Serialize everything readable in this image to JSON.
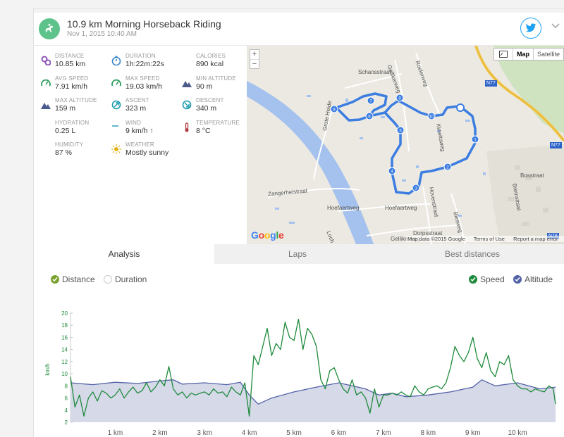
{
  "activity": {
    "title": "10.9 km Morning Horseback Riding",
    "date": "Nov 1, 2015 10:40 AM"
  },
  "stats": [
    {
      "label": "DISTANCE",
      "value": "10.85 km",
      "icon": "distance-pin-icon",
      "color": "#8e55b5"
    },
    {
      "label": "DURATION",
      "value": "1h:22m:22s",
      "icon": "stopwatch-icon",
      "color": "#3b86c9"
    },
    {
      "label": "CALORIES",
      "value": "890 kcal",
      "icon": "flame-icon",
      "color": "#e8612c"
    },
    {
      "label": "AVG SPEED",
      "value": "7.91 km/h",
      "icon": "speedometer-icon",
      "color": "#2a9a5c"
    },
    {
      "label": "MAX SPEED",
      "value": "19.03 km/h",
      "icon": "speedometer-icon",
      "color": "#2a9a5c"
    },
    {
      "label": "MIN ALTITUDE",
      "value": "90 m",
      "icon": "mountain-icon",
      "color": "#4a5a8c"
    },
    {
      "label": "MAX ALTITUDE",
      "value": "159 m",
      "icon": "mountain-icon",
      "color": "#4a5a8c"
    },
    {
      "label": "ASCENT",
      "value": "323 m",
      "icon": "ascent-icon",
      "color": "#1c9bb0"
    },
    {
      "label": "DESCENT",
      "value": "340 m",
      "icon": "descent-icon",
      "color": "#1c9bb0"
    },
    {
      "label": "HYDRATION",
      "value": "0.25 L",
      "icon": "water-drops-icon",
      "color": "#5b9bd5"
    },
    {
      "label": "WIND",
      "value": "9 km/h ↑",
      "icon": "wind-icon",
      "color": "#2aa0b8"
    },
    {
      "label": "TEMPERATURE",
      "value": "8 °C",
      "icon": "thermometer-icon",
      "color": "#b0393f"
    },
    {
      "label": "HUMIDITY",
      "value": "87 %",
      "icon": "humidity-drops-icon",
      "color": "#5b9bd5"
    },
    {
      "label": "WEATHER",
      "value": "Mostly sunny",
      "icon": "sun-icon",
      "color": "#e0b21a"
    }
  ],
  "map": {
    "zoom_in": "+",
    "zoom_out": "−",
    "type_map": "Map",
    "type_satellite": "Satellite",
    "google_logo": "Google",
    "attribution": [
      "Map data ©2015 Google",
      "Terms of Use",
      "Report a map error"
    ],
    "labels": [
      {
        "text": "Schansstraat"
      },
      {
        "text": "Gellikerweg"
      },
      {
        "text": "Roelerweg"
      },
      {
        "text": "Grote Heide"
      },
      {
        "text": "Kiewitsweg"
      },
      {
        "text": "Bosstraat"
      },
      {
        "text": "Bremstraat"
      },
      {
        "text": "Zangerheistraat"
      },
      {
        "text": "Hoefaertweg"
      },
      {
        "text": "Hoefaertweg"
      },
      {
        "text": "Hovenstraat"
      },
      {
        "text": "Biesweg"
      },
      {
        "text": "Dorpsstraat"
      },
      {
        "text": "Gellikerweg"
      },
      {
        "text": "Loch"
      }
    ],
    "roads": [
      "N77",
      "N77",
      "N78"
    ],
    "km_markers": [
      "1",
      "2",
      "3",
      "4",
      "5",
      "6",
      "7",
      "8",
      "9",
      "10"
    ]
  },
  "tabs": [
    {
      "label": "Analysis"
    },
    {
      "label": "Laps"
    },
    {
      "label": "Best distances"
    }
  ],
  "legend": {
    "distance": "Distance",
    "duration": "Duration",
    "speed": "Speed",
    "altitude": "Altitude"
  },
  "colors": {
    "speed": "#1e8a3b",
    "altitude_line": "#5463a8",
    "altitude_fill": "#d5d9e8",
    "route": "#3b7de0",
    "accent_green": "#7aa22f"
  },
  "chart_data": {
    "type": "line",
    "xlabel": "",
    "ylabel": "km/h",
    "xlim": [
      0,
      10.85
    ],
    "ylim": [
      2,
      20
    ],
    "x_ticks": [
      "1 km",
      "2 km",
      "3 km",
      "4 km",
      "5 km",
      "6 km",
      "7 km",
      "8 km",
      "9 km",
      "10 km"
    ],
    "y_ticks": [
      "2",
      "4",
      "6",
      "8",
      "10",
      "12",
      "14",
      "16",
      "18",
      "20"
    ],
    "series": [
      {
        "name": "Speed",
        "x": [
          0.0,
          0.1,
          0.2,
          0.3,
          0.4,
          0.5,
          0.6,
          0.7,
          0.8,
          0.9,
          1.0,
          1.1,
          1.2,
          1.3,
          1.4,
          1.5,
          1.6,
          1.7,
          1.8,
          1.9,
          2.0,
          2.1,
          2.2,
          2.3,
          2.4,
          2.5,
          2.6,
          2.7,
          2.8,
          2.9,
          3.0,
          3.1,
          3.2,
          3.3,
          3.4,
          3.5,
          3.6,
          3.7,
          3.8,
          3.9,
          4.0,
          4.1,
          4.2,
          4.3,
          4.4,
          4.5,
          4.6,
          4.7,
          4.8,
          4.9,
          5.0,
          5.1,
          5.2,
          5.3,
          5.4,
          5.5,
          5.6,
          5.7,
          5.8,
          5.9,
          6.0,
          6.1,
          6.2,
          6.3,
          6.4,
          6.5,
          6.6,
          6.7,
          6.8,
          6.9,
          7.0,
          7.1,
          7.2,
          7.3,
          7.4,
          7.5,
          7.6,
          7.7,
          7.8,
          7.9,
          8.0,
          8.1,
          8.2,
          8.3,
          8.4,
          8.5,
          8.6,
          8.7,
          8.8,
          8.9,
          9.0,
          9.1,
          9.2,
          9.3,
          9.4,
          9.5,
          9.6,
          9.7,
          9.8,
          9.9,
          10.0,
          10.1,
          10.2,
          10.3,
          10.4,
          10.5,
          10.6,
          10.7,
          10.8,
          10.85
        ],
        "values": [
          9.5,
          4.5,
          6.5,
          3.0,
          6.0,
          7.0,
          5.5,
          7.2,
          6.8,
          6.0,
          6.5,
          7.5,
          6.0,
          7.0,
          7.8,
          6.8,
          7.2,
          8.5,
          7.0,
          7.8,
          9.0,
          8.0,
          11.2,
          7.5,
          6.5,
          7.0,
          6.0,
          6.8,
          6.5,
          6.8,
          7.0,
          6.5,
          7.5,
          6.8,
          7.0,
          6.2,
          7.8,
          7.0,
          6.5,
          8.5,
          3.0,
          13.0,
          11.5,
          14.5,
          17.5,
          13.0,
          15.0,
          14.0,
          18.5,
          16.0,
          15.5,
          19.0,
          14.0,
          17.5,
          16.5,
          14.5,
          9.0,
          7.5,
          10.5,
          11.0,
          9.0,
          7.5,
          6.8,
          9.0,
          6.5,
          7.0,
          6.0,
          3.5,
          7.5,
          4.5,
          6.5,
          6.5,
          6.8,
          6.5,
          7.0,
          6.5,
          6.2,
          8.0,
          7.0,
          6.5,
          7.5,
          7.8,
          8.0,
          7.5,
          8.5,
          11.0,
          14.5,
          13.0,
          12.0,
          13.5,
          16.0,
          12.5,
          11.0,
          13.5,
          10.5,
          9.5,
          12.0,
          11.5,
          13.0,
          9.0,
          8.0,
          7.5,
          7.5,
          7.0,
          7.5,
          7.2,
          7.0,
          8.0,
          7.5,
          5.0
        ],
        "color": "#1e8a3b"
      },
      {
        "name": "Altitude",
        "x": [
          0.0,
          0.5,
          1.0,
          1.5,
          2.0,
          2.3,
          2.5,
          3.0,
          3.5,
          3.8,
          4.0,
          4.2,
          4.5,
          5.0,
          5.5,
          6.0,
          6.3,
          6.6,
          6.9,
          7.2,
          7.5,
          8.0,
          8.5,
          9.0,
          9.2,
          9.5,
          10.0,
          10.5,
          10.85
        ],
        "values": [
          8.5,
          8.2,
          8.6,
          8.4,
          8.8,
          9.0,
          8.3,
          8.5,
          8.2,
          8.6,
          6.5,
          5.0,
          6.0,
          7.0,
          7.8,
          8.5,
          8.0,
          7.5,
          6.5,
          6.8,
          6.2,
          6.5,
          7.0,
          7.8,
          9.0,
          8.0,
          8.5,
          7.5,
          7.8
        ],
        "color": "#5463a8"
      }
    ],
    "legend_position": "top"
  }
}
